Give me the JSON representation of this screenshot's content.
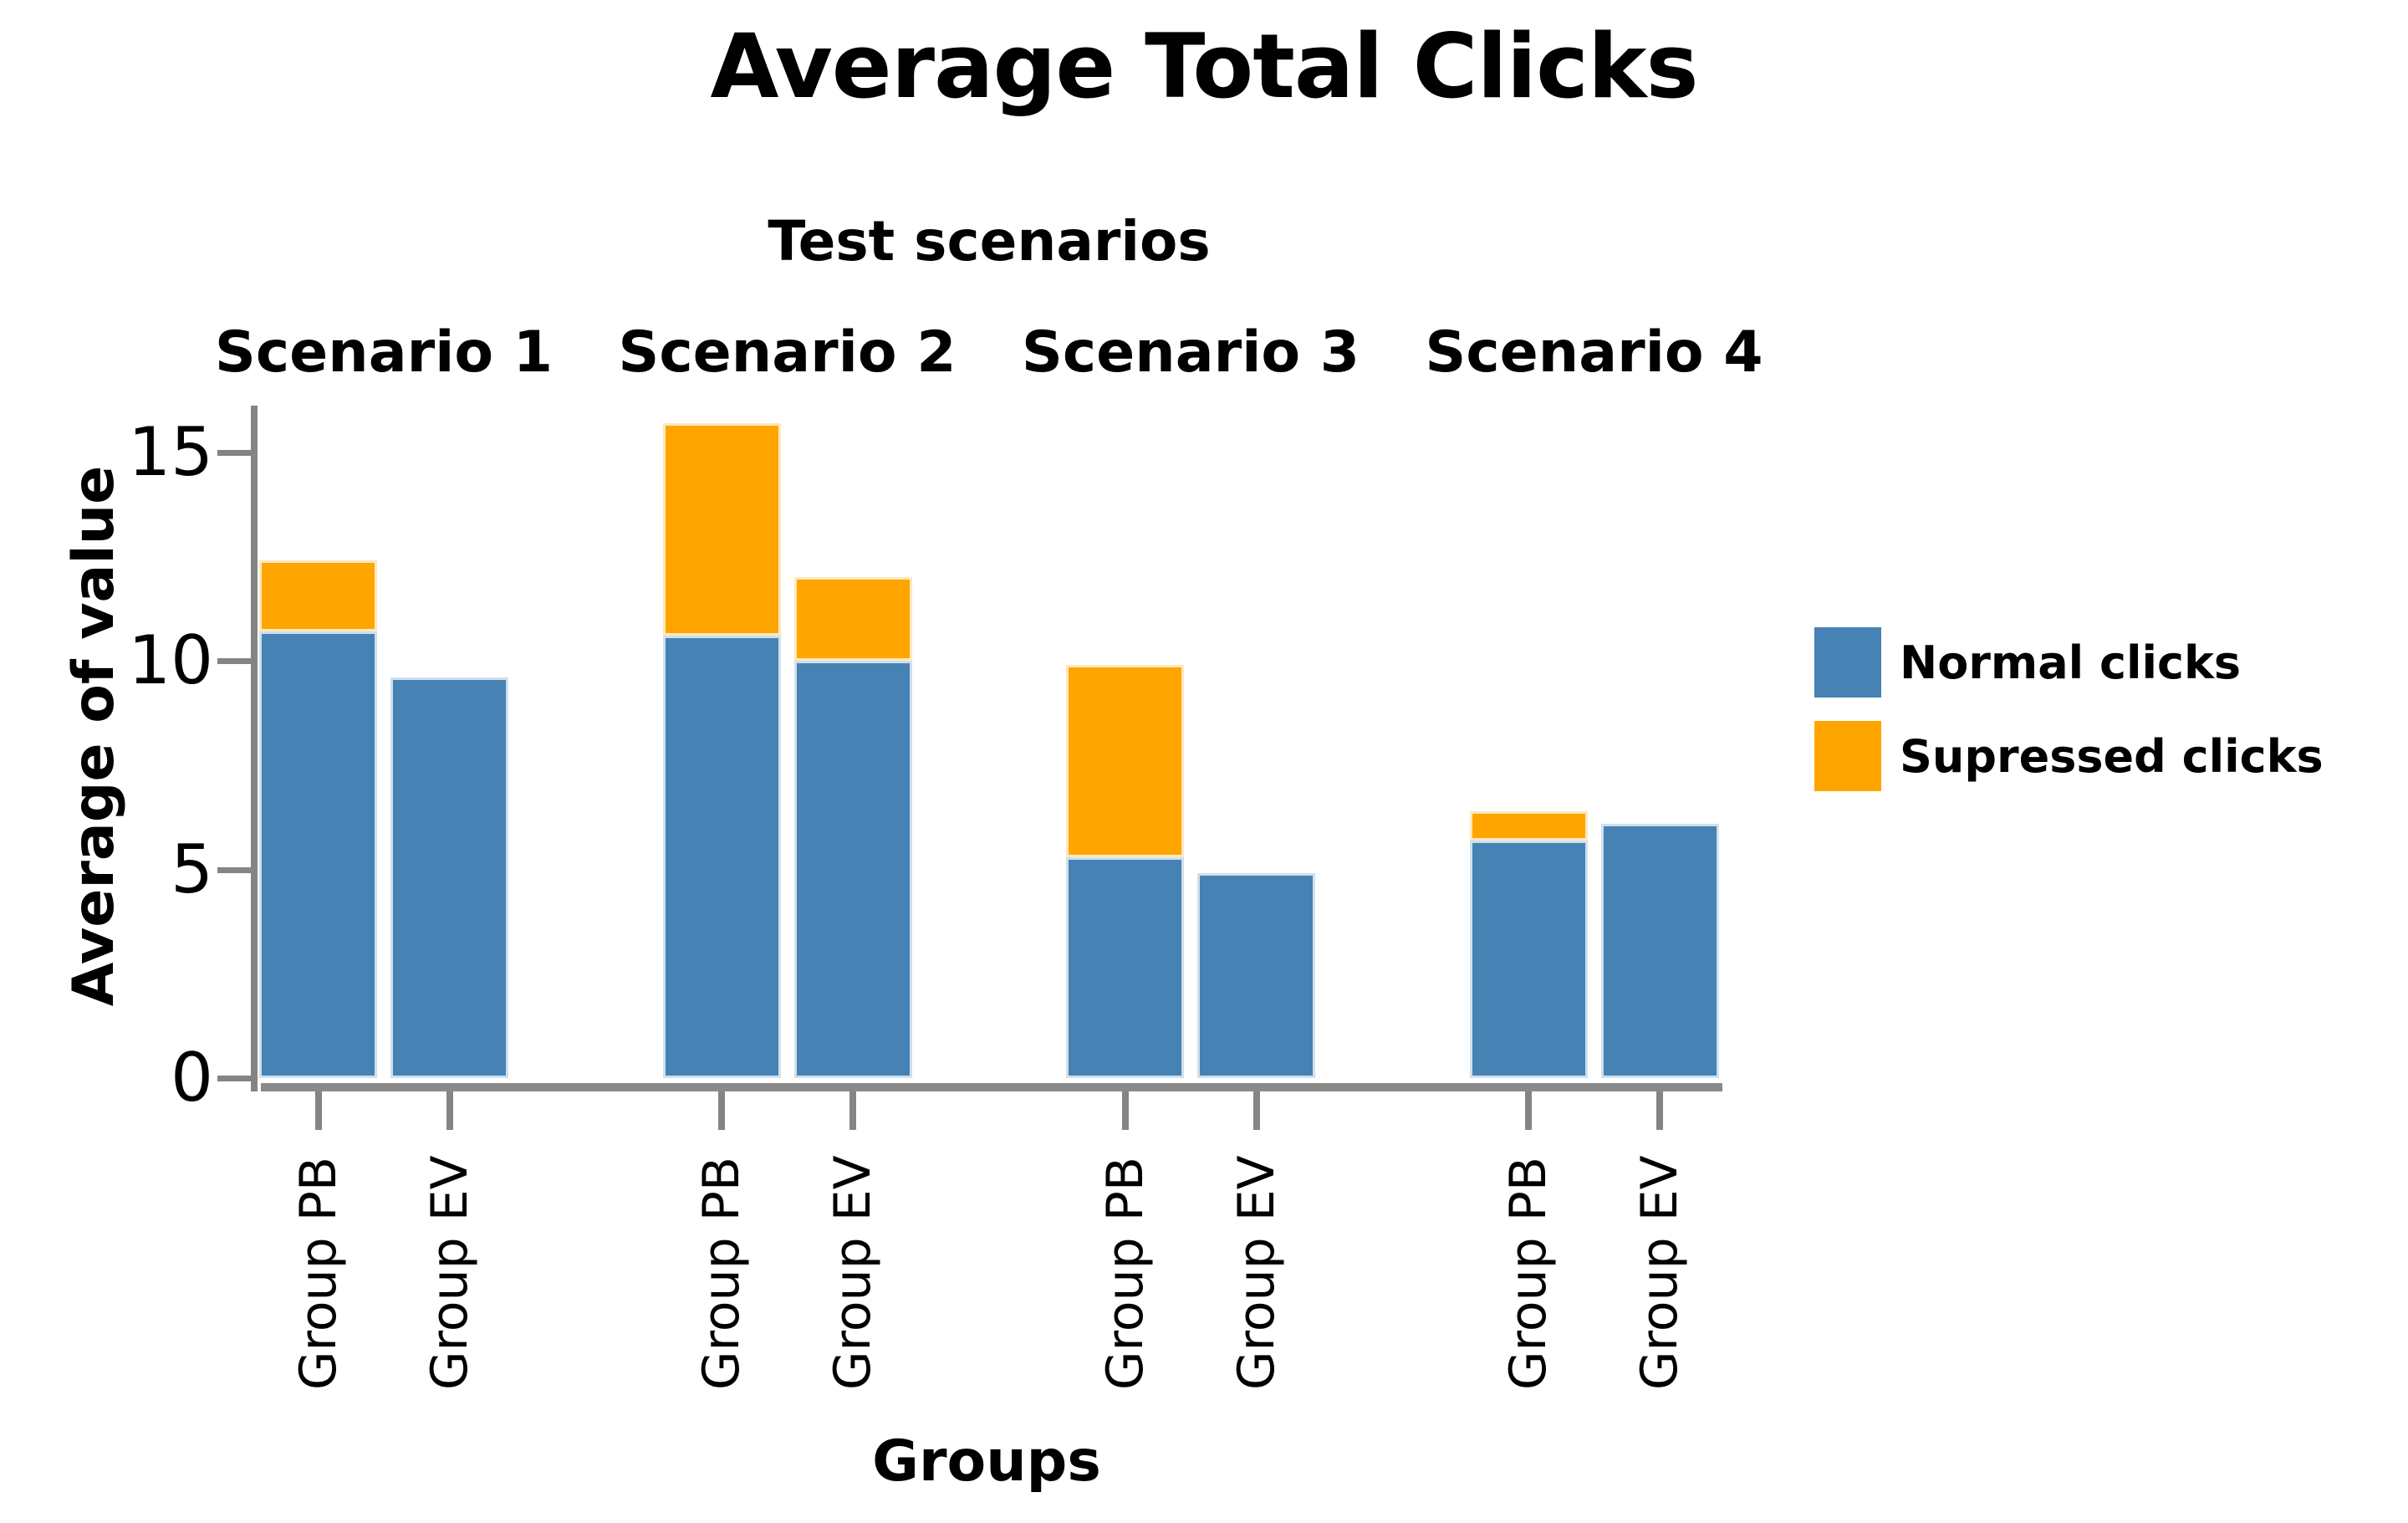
{
  "chart_data": {
    "type": "bar",
    "stacked": true,
    "title": "Average Total Clicks",
    "facet_axis_title": "Test scenarios",
    "xlabel": "Groups",
    "ylabel": "Average of value",
    "yticks": [
      0,
      5,
      10,
      15
    ],
    "ylim": [
      0,
      16.2
    ],
    "grid": false,
    "groups": [
      "Group PB",
      "Group EV"
    ],
    "series_names": [
      "Normal clicks",
      "Supressed clicks"
    ],
    "facets": [
      {
        "label": "Scenario 1",
        "bars": [
          {
            "group": "Group PB",
            "normal": 10.7,
            "supressed": 1.7
          },
          {
            "group": "Group EV",
            "normal": 9.6,
            "supressed": 0
          }
        ]
      },
      {
        "label": "Scenario 2",
        "bars": [
          {
            "group": "Group PB",
            "normal": 10.6,
            "supressed": 5.1
          },
          {
            "group": "Group EV",
            "normal": 10.0,
            "supressed": 2.0
          }
        ]
      },
      {
        "label": "Scenario 3",
        "bars": [
          {
            "group": "Group PB",
            "normal": 5.3,
            "supressed": 4.6
          },
          {
            "group": "Group EV",
            "normal": 4.9,
            "supressed": 0
          }
        ]
      },
      {
        "label": "Scenario 4",
        "bars": [
          {
            "group": "Group PB",
            "normal": 5.7,
            "supressed": 0.7
          },
          {
            "group": "Group EV",
            "normal": 6.1,
            "supressed": 0
          }
        ]
      }
    ],
    "legend": {
      "position": "right",
      "entries": [
        {
          "label": "Normal clicks",
          "color": "#4682B4"
        },
        {
          "label": "Supressed clicks",
          "color": "#FFA500"
        }
      ]
    },
    "colors": {
      "normal": "#4682B4",
      "supressed": "#FFA500",
      "axis": "#848484",
      "text": "#000000",
      "background": "#FFFFFF"
    }
  }
}
